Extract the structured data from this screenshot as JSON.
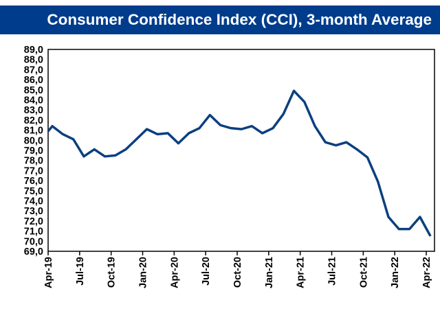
{
  "chart_data": {
    "type": "line",
    "title": "Consumer Confidence Index (CCI), 3-month Average",
    "xlabel": "",
    "ylabel": "",
    "ylim": [
      69.0,
      89.0
    ],
    "y_ticks": [
      "69,0",
      "70,0",
      "71,0",
      "72,0",
      "73,0",
      "74,0",
      "75,0",
      "76,0",
      "77,0",
      "78,0",
      "79,0",
      "80,0",
      "81,0",
      "82,0",
      "83,0",
      "84,0",
      "85,0",
      "86,0",
      "87,0",
      "88,0",
      "89,0"
    ],
    "x_tick_labels": [
      "Apr-19",
      "Jul-19",
      "Oct-19",
      "Jan-20",
      "Apr-20",
      "Jul-20",
      "Oct-20",
      "Jan-21",
      "Apr-21",
      "Jul-21",
      "Oct-21",
      "Jan-22",
      "Apr-22"
    ],
    "grid": false,
    "legend": "none",
    "start_value": 80.9,
    "series": [
      {
        "name": "CCI 3-month average",
        "color": "#0b3f80",
        "x": [
          "Apr-19",
          "May-19",
          "Jun-19",
          "Jul-19",
          "Aug-19",
          "Sep-19",
          "Oct-19",
          "Nov-19",
          "Dec-19",
          "Jan-20",
          "Feb-20",
          "Mar-20",
          "Apr-20",
          "May-20",
          "Jun-20",
          "Jul-20",
          "Aug-20",
          "Sep-20",
          "Oct-20",
          "Nov-20",
          "Dec-20",
          "Jan-21",
          "Feb-21",
          "Mar-21",
          "Apr-21",
          "May-21",
          "Jun-21",
          "Jul-21",
          "Aug-21",
          "Sep-21",
          "Oct-21",
          "Nov-21",
          "Dec-21",
          "Jan-22",
          "Feb-22",
          "Mar-22",
          "Apr-22"
        ],
        "values": [
          81.4,
          80.6,
          80.1,
          78.4,
          79.1,
          78.4,
          78.5,
          79.1,
          80.1,
          81.1,
          80.6,
          80.7,
          79.7,
          80.7,
          81.2,
          82.5,
          81.5,
          81.2,
          81.1,
          81.4,
          80.7,
          81.2,
          82.6,
          84.9,
          83.8,
          81.4,
          79.8,
          79.5,
          79.8,
          79.1,
          78.3,
          75.9,
          72.4,
          71.2,
          71.2,
          72.4,
          70.5
        ]
      }
    ]
  },
  "colors": {
    "banner": "#003c8c",
    "line": "#0b3f80"
  }
}
